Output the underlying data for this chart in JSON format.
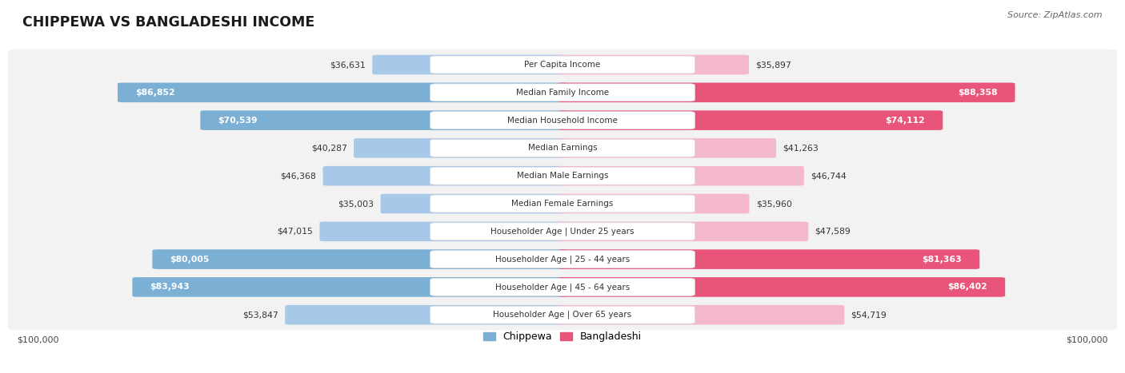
{
  "title": "CHIPPEWA VS BANGLADESHI INCOME",
  "source": "Source: ZipAtlas.com",
  "categories": [
    "Per Capita Income",
    "Median Family Income",
    "Median Household Income",
    "Median Earnings",
    "Median Male Earnings",
    "Median Female Earnings",
    "Householder Age | Under 25 years",
    "Householder Age | 25 - 44 years",
    "Householder Age | 45 - 64 years",
    "Householder Age | Over 65 years"
  ],
  "chippewa_values": [
    36631,
    86852,
    70539,
    40287,
    46368,
    35003,
    47015,
    80005,
    83943,
    53847
  ],
  "bangladeshi_values": [
    35897,
    88358,
    74112,
    41263,
    46744,
    35960,
    47589,
    81363,
    86402,
    54719
  ],
  "max_value": 100000,
  "chippewa_color_light": "#a8c8e8",
  "chippewa_color_dark": "#7bafd4",
  "bangladeshi_color_light": "#f4b8cc",
  "bangladeshi_color_dark": "#e8547a",
  "background_color": "#ffffff",
  "row_bg_even": "#f2f2f2",
  "row_bg_odd": "#e8e8e8",
  "legend_chippewa_color": "#7bafd4",
  "legend_bangladeshi_color": "#e8547a",
  "chip_inside_threshold": 55000,
  "bg_inside_threshold": 55000
}
